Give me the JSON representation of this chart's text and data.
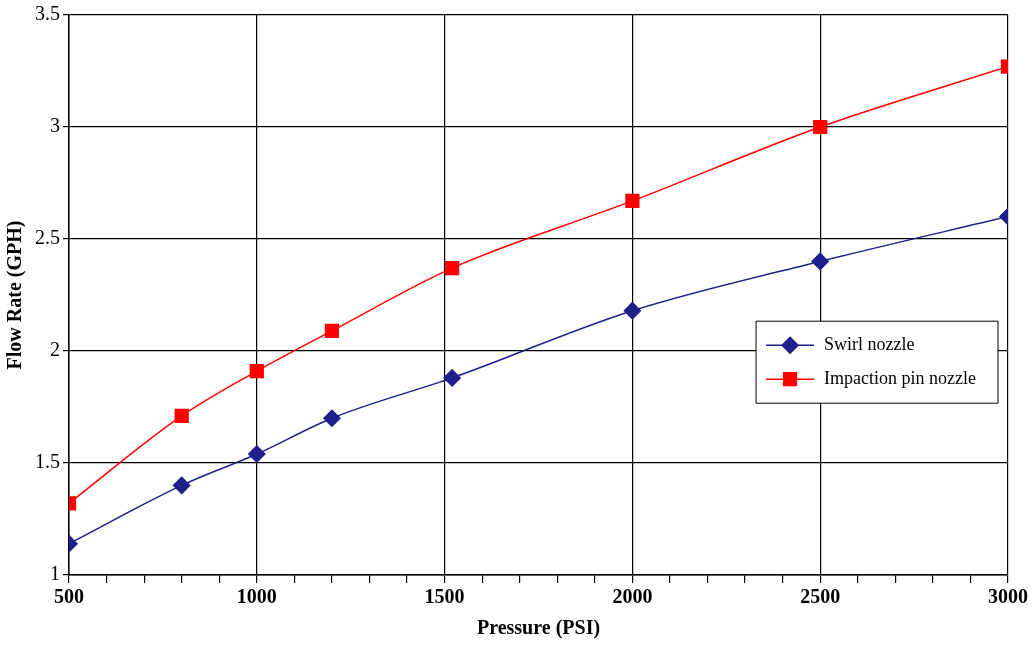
{
  "chart_data": {
    "type": "line",
    "xlabel": "Pressure (PSI)",
    "ylabel": "Flow Rate (GPH)",
    "xlim": [
      500,
      3000
    ],
    "xticks": [
      500,
      {
        "value": 600,
        "label": null
      },
      {
        "value": 700,
        "label": null
      },
      {
        "value": 800,
        "label": null
      },
      {
        "value": 900,
        "label": null
      },
      1000,
      {
        "value": 1100,
        "label": null
      },
      {
        "value": 1200,
        "label": null
      },
      {
        "value": 1300,
        "label": null
      },
      {
        "value": 1400,
        "label": null
      },
      1500,
      {
        "value": 1600,
        "label": null
      },
      {
        "value": 1700,
        "label": null
      },
      {
        "value": 1800,
        "label": null
      },
      {
        "value": 1900,
        "label": null
      },
      2000,
      {
        "value": 2100,
        "label": null
      },
      {
        "value": 2200,
        "label": null
      },
      {
        "value": 2300,
        "label": null
      },
      {
        "value": 2400,
        "label": null
      },
      2500,
      {
        "value": 2600,
        "label": null
      },
      {
        "value": 2700,
        "label": null
      },
      {
        "value": 2800,
        "label": null
      },
      {
        "value": 2900,
        "label": null
      },
      3000
    ],
    "ylim": [
      1,
      3.5
    ],
    "yticks": [
      1,
      1.5,
      2,
      2.5,
      3,
      3.5
    ],
    "grid": true,
    "legend": "right",
    "x": [
      500,
      800,
      1000,
      1200,
      1520,
      2000,
      2500,
      3000
    ],
    "series": [
      {
        "name": "Swirl nozzle",
        "color": "#1f1f8c",
        "marker": "diamond",
        "values": [
          1.14,
          1.4,
          1.54,
          1.7,
          1.88,
          2.18,
          2.4,
          2.6
        ]
      },
      {
        "name": "Impaction pin nozzle",
        "color": "#ff0000",
        "marker": "square",
        "values": [
          1.32,
          1.71,
          1.91,
          2.09,
          2.37,
          2.67,
          3.0,
          3.27
        ]
      }
    ]
  }
}
